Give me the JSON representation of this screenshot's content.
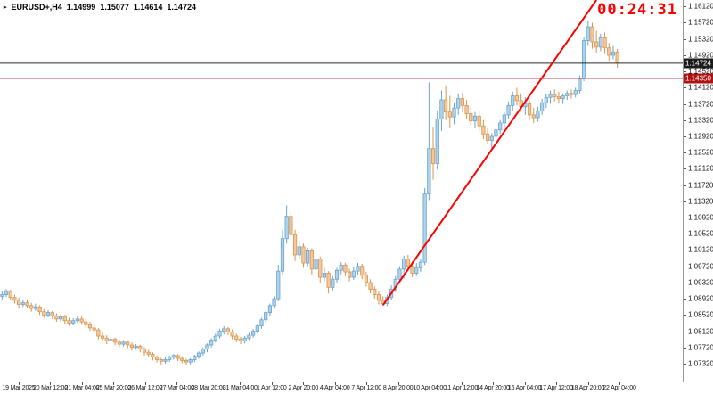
{
  "window": {
    "title": "EURUSD+,H4"
  },
  "header": {
    "symbol_period": "EURUSD+,H4",
    "open": "1.14999",
    "high": "1.15077",
    "low": "1.14614",
    "close": "1.14724"
  },
  "timer": {
    "value": "00:24:31",
    "color": "#ff0000"
  },
  "price_tags": {
    "bid": "1.14724",
    "level": "1.14350"
  },
  "chart_data": {
    "type": "candlestick",
    "title": "EURUSD+,H4",
    "symbol": "EURUSD+",
    "timeframe": "H4",
    "grid": false,
    "y_range": [
      1.0688,
      1.1628
    ],
    "y_ticks": [
      "1.16120",
      "1.15720",
      "1.15320",
      "1.14920",
      "1.14520",
      "1.14120",
      "1.13720",
      "1.13320",
      "1.12920",
      "1.12520",
      "1.12120",
      "1.11720",
      "1.11320",
      "1.10920",
      "1.10520",
      "1.10120",
      "1.09720",
      "1.09320",
      "1.08920",
      "1.08520",
      "1.08120",
      "1.07720",
      "1.07320"
    ],
    "x_labels": [
      "19 Mar 2025",
      "20 Mar 12:00",
      "21 Mar 04:00",
      "25 Mar 20:00",
      "26 Mar 12:00",
      "27 Mar 04:00",
      "28 Mar 20:00",
      "31 Mar 04:00",
      "1 Apr 12:00",
      "2 Apr 20:00",
      "4 Apr 04:00",
      "7 Apr 12:00",
      "8 Apr 20:00",
      "10 Apr 04:00",
      "11 Apr 12:00",
      "14 Apr 20:00",
      "16 Apr 04:00",
      "17 Apr 12:00",
      "18 Apr 20:00",
      "22 Apr 04:00"
    ],
    "colors": {
      "up_fill": "#aed3ee",
      "up_stroke": "#6ba3cc",
      "down_fill": "#f5c89a",
      "down_stroke": "#d8944e"
    },
    "hlines": [
      {
        "name": "bid-line",
        "price": 1.14724,
        "label": "1.14724",
        "color": "#2a2a2a",
        "tag_color": "#1c1c1c"
      },
      {
        "name": "level-line",
        "price": 1.1435,
        "label": "1.14350",
        "color": "#a51414",
        "tag_color": "#b01212"
      }
    ],
    "trendline": {
      "i1": 91,
      "p1": 1.0876,
      "i2": 142,
      "p2": 1.1628,
      "color": "#ff0000"
    },
    "candles": [
      [
        1.0898,
        1.0912,
        1.089,
        1.0902
      ],
      [
        1.0902,
        1.0916,
        1.0896,
        1.091
      ],
      [
        1.091,
        1.0914,
        1.0888,
        1.0895
      ],
      [
        1.0895,
        1.0902,
        1.088,
        1.0888
      ],
      [
        1.0888,
        1.0895,
        1.087,
        1.0878
      ],
      [
        1.0878,
        1.089,
        1.0872,
        1.0882
      ],
      [
        1.0882,
        1.0888,
        1.0868,
        1.0875
      ],
      [
        1.0875,
        1.0882,
        1.086,
        1.0868
      ],
      [
        1.0868,
        1.088,
        1.0862,
        1.0872
      ],
      [
        1.0872,
        1.0876,
        1.0852,
        1.086
      ],
      [
        1.086,
        1.0866,
        1.0845,
        1.0852
      ],
      [
        1.0852,
        1.0864,
        1.0846,
        1.0858
      ],
      [
        1.0858,
        1.0862,
        1.0842,
        1.085
      ],
      [
        1.085,
        1.0856,
        1.0835,
        1.0842
      ],
      [
        1.0842,
        1.0854,
        1.0836,
        1.0848
      ],
      [
        1.0848,
        1.0852,
        1.083,
        1.0838
      ],
      [
        1.0838,
        1.0845,
        1.0825,
        1.0832
      ],
      [
        1.0832,
        1.0844,
        1.0826,
        1.0838
      ],
      [
        1.0838,
        1.085,
        1.0832,
        1.0842
      ],
      [
        1.0842,
        1.0848,
        1.0828,
        1.0835
      ],
      [
        1.0835,
        1.0842,
        1.082,
        1.0828
      ],
      [
        1.0828,
        1.0835,
        1.0812,
        1.082
      ],
      [
        1.082,
        1.0828,
        1.0808,
        1.0815
      ],
      [
        1.0815,
        1.082,
        1.0792,
        1.08
      ],
      [
        1.08,
        1.0808,
        1.0788,
        1.0795
      ],
      [
        1.0795,
        1.0802,
        1.078,
        1.0788
      ],
      [
        1.0788,
        1.0798,
        1.0782,
        1.0792
      ],
      [
        1.0792,
        1.0796,
        1.0778,
        1.0785
      ],
      [
        1.0785,
        1.0792,
        1.0772,
        1.078
      ],
      [
        1.078,
        1.079,
        1.0774,
        1.0785
      ],
      [
        1.0785,
        1.0788,
        1.077,
        1.0778
      ],
      [
        1.0778,
        1.0784,
        1.0764,
        1.0772
      ],
      [
        1.0772,
        1.078,
        1.0766,
        1.0775
      ],
      [
        1.0775,
        1.0778,
        1.076,
        1.0768
      ],
      [
        1.0768,
        1.0772,
        1.0752,
        1.076
      ],
      [
        1.076,
        1.0766,
        1.0748,
        1.0755
      ],
      [
        1.0755,
        1.076,
        1.074,
        1.0748
      ],
      [
        1.0748,
        1.0752,
        1.0735,
        1.0742
      ],
      [
        1.0742,
        1.0746,
        1.073,
        1.0738
      ],
      [
        1.0738,
        1.0748,
        1.0732,
        1.0742
      ],
      [
        1.0742,
        1.0752,
        1.0736,
        1.0748
      ],
      [
        1.0748,
        1.0756,
        1.0742,
        1.0752
      ],
      [
        1.0752,
        1.0755,
        1.0738,
        1.0745
      ],
      [
        1.0745,
        1.075,
        1.0733,
        1.074
      ],
      [
        1.074,
        1.0744,
        1.0728,
        1.0736
      ],
      [
        1.0736,
        1.0746,
        1.073,
        1.0742
      ],
      [
        1.0742,
        1.0754,
        1.0736,
        1.075
      ],
      [
        1.075,
        1.0762,
        1.0744,
        1.0758
      ],
      [
        1.0758,
        1.0772,
        1.0752,
        1.0768
      ],
      [
        1.0768,
        1.0782,
        1.076,
        1.0778
      ],
      [
        1.0778,
        1.0795,
        1.0772,
        1.079
      ],
      [
        1.079,
        1.0806,
        1.0784,
        1.08
      ],
      [
        1.08,
        1.0818,
        1.0794,
        1.0812
      ],
      [
        1.0812,
        1.0824,
        1.0804,
        1.0818
      ],
      [
        1.0818,
        1.0822,
        1.0802,
        1.081
      ],
      [
        1.081,
        1.0816,
        1.0792,
        1.08
      ],
      [
        1.08,
        1.0806,
        1.0785,
        1.0792
      ],
      [
        1.0792,
        1.0798,
        1.078,
        1.0788
      ],
      [
        1.0788,
        1.08,
        1.0782,
        1.0795
      ],
      [
        1.0795,
        1.0808,
        1.079,
        1.0802
      ],
      [
        1.0802,
        1.0818,
        1.0796,
        1.0812
      ],
      [
        1.0812,
        1.083,
        1.0806,
        1.0825
      ],
      [
        1.0825,
        1.0845,
        1.0818,
        1.084
      ],
      [
        1.084,
        1.0862,
        1.0834,
        1.0858
      ],
      [
        1.0858,
        1.088,
        1.085,
        1.0875
      ],
      [
        1.0875,
        1.0898,
        1.0868,
        1.0892
      ],
      [
        1.0892,
        1.0975,
        1.0886,
        1.096
      ],
      [
        1.096,
        1.106,
        1.095,
        1.104
      ],
      [
        1.104,
        1.1122,
        1.1028,
        1.1095
      ],
      [
        1.1095,
        1.1108,
        1.103,
        1.105
      ],
      [
        1.105,
        1.1062,
        1.0985,
        1.1
      ],
      [
        1.1,
        1.1035,
        1.099,
        1.102
      ],
      [
        1.102,
        1.1028,
        1.0968,
        1.098
      ],
      [
        1.098,
        1.1018,
        1.0972,
        1.101
      ],
      [
        1.101,
        1.1016,
        1.0952,
        1.0965
      ],
      [
        1.0965,
        1.1,
        1.0958,
        1.099
      ],
      [
        1.099,
        1.0996,
        1.0932,
        1.0945
      ],
      [
        1.0945,
        1.0968,
        1.0935,
        1.0955
      ],
      [
        1.0955,
        1.096,
        1.0905,
        1.092
      ],
      [
        1.092,
        1.0948,
        1.0912,
        1.094
      ],
      [
        1.094,
        1.0968,
        1.0932,
        1.0962
      ],
      [
        1.0962,
        1.0982,
        1.0952,
        1.0975
      ],
      [
        1.0975,
        1.098,
        1.0948,
        1.0958
      ],
      [
        1.0958,
        1.0966,
        1.0935,
        1.0945
      ],
      [
        1.0945,
        1.097,
        1.0938,
        1.096
      ],
      [
        1.096,
        1.098,
        1.0952,
        1.0972
      ],
      [
        1.0972,
        1.0978,
        1.094,
        1.095
      ],
      [
        1.095,
        1.0958,
        1.0922,
        1.0932
      ],
      [
        1.0932,
        1.094,
        1.0905,
        1.0915
      ],
      [
        1.0915,
        1.0922,
        1.0892,
        1.0902
      ],
      [
        1.0902,
        1.091,
        1.0878,
        1.0888
      ],
      [
        1.0888,
        1.0898,
        1.0876,
        1.088
      ],
      [
        1.088,
        1.0902,
        1.0874,
        1.0895
      ],
      [
        1.0895,
        1.0925,
        1.0888,
        1.0915
      ],
      [
        1.0915,
        1.0948,
        1.0908,
        1.094
      ],
      [
        1.094,
        1.0972,
        1.0932,
        1.0965
      ],
      [
        1.0965,
        1.0998,
        1.0942,
        1.099
      ],
      [
        1.099,
        1.1,
        1.096,
        1.0972
      ],
      [
        1.0972,
        1.0985,
        1.0945,
        1.0955
      ],
      [
        1.0955,
        1.098,
        1.0948,
        1.0968
      ],
      [
        1.0968,
        1.099,
        1.0958,
        1.0982
      ],
      [
        1.0982,
        1.1165,
        1.0975,
        1.115
      ],
      [
        1.115,
        1.1425,
        1.1135,
        1.1262
      ],
      [
        1.1262,
        1.1315,
        1.1185,
        1.1225
      ],
      [
        1.1225,
        1.1355,
        1.121,
        1.1335
      ],
      [
        1.1335,
        1.1405,
        1.1305,
        1.1382
      ],
      [
        1.1382,
        1.1418,
        1.1332,
        1.1352
      ],
      [
        1.1352,
        1.1392,
        1.1312,
        1.134
      ],
      [
        1.134,
        1.1375,
        1.1322,
        1.1362
      ],
      [
        1.1362,
        1.1398,
        1.1345,
        1.1385
      ],
      [
        1.1385,
        1.14,
        1.1352,
        1.1368
      ],
      [
        1.1368,
        1.1382,
        1.1335,
        1.1348
      ],
      [
        1.1348,
        1.1365,
        1.1318,
        1.133
      ],
      [
        1.133,
        1.1352,
        1.1312,
        1.1342
      ],
      [
        1.1342,
        1.1355,
        1.1305,
        1.1318
      ],
      [
        1.1318,
        1.1332,
        1.1285,
        1.1298
      ],
      [
        1.1298,
        1.1312,
        1.1272,
        1.1282
      ],
      [
        1.1282,
        1.13,
        1.1262,
        1.1292
      ],
      [
        1.1292,
        1.1318,
        1.1282,
        1.1308
      ],
      [
        1.1308,
        1.1332,
        1.1298,
        1.1325
      ],
      [
        1.1325,
        1.1352,
        1.1315,
        1.1345
      ],
      [
        1.1345,
        1.1378,
        1.1335,
        1.1368
      ],
      [
        1.1368,
        1.1402,
        1.1355,
        1.1392
      ],
      [
        1.1392,
        1.1412,
        1.1368,
        1.138
      ],
      [
        1.138,
        1.1398,
        1.1352,
        1.1365
      ],
      [
        1.1365,
        1.1388,
        1.1345,
        1.1372
      ],
      [
        1.1372,
        1.138,
        1.1332,
        1.1345
      ],
      [
        1.1345,
        1.1362,
        1.1325,
        1.1338
      ],
      [
        1.1338,
        1.1365,
        1.1328,
        1.1355
      ],
      [
        1.1355,
        1.1385,
        1.1345,
        1.1375
      ],
      [
        1.1375,
        1.1398,
        1.1362,
        1.1388
      ],
      [
        1.1388,
        1.1405,
        1.1372,
        1.1395
      ],
      [
        1.1395,
        1.1408,
        1.1378,
        1.139
      ],
      [
        1.139,
        1.1402,
        1.1375,
        1.1385
      ],
      [
        1.1385,
        1.1398,
        1.1372,
        1.1392
      ],
      [
        1.1392,
        1.1405,
        1.1382,
        1.1398
      ],
      [
        1.1398,
        1.1408,
        1.1385,
        1.1395
      ],
      [
        1.1395,
        1.1412,
        1.1388,
        1.1405
      ],
      [
        1.1405,
        1.1442,
        1.1398,
        1.1435
      ],
      [
        1.1435,
        1.1538,
        1.1428,
        1.1528
      ],
      [
        1.1528,
        1.1578,
        1.1515,
        1.1562
      ],
      [
        1.1562,
        1.1572,
        1.1508,
        1.1525
      ],
      [
        1.1525,
        1.1552,
        1.1498,
        1.1512
      ],
      [
        1.1512,
        1.1545,
        1.1502,
        1.1535
      ],
      [
        1.1535,
        1.1548,
        1.1495,
        1.151
      ],
      [
        1.151,
        1.1522,
        1.1478,
        1.1492
      ],
      [
        1.1492,
        1.1515,
        1.1482,
        1.15
      ],
      [
        1.14999,
        1.15077,
        1.14614,
        1.14724
      ]
    ]
  }
}
